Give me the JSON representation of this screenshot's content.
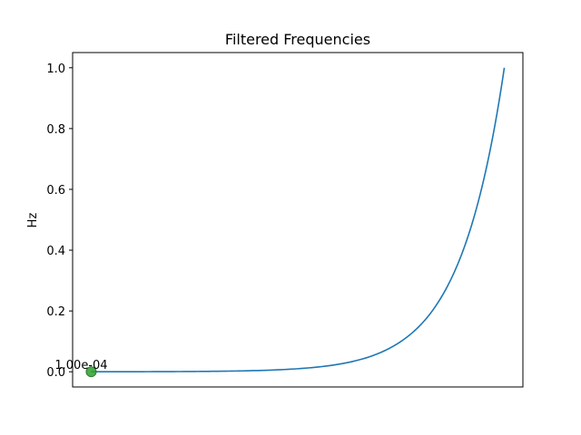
{
  "chart_data": {
    "type": "line",
    "title": "Filtered Frequencies",
    "xlabel": "",
    "ylabel": "Hz",
    "xticks_visible": false,
    "ylim": [
      -0.05,
      1.05
    ],
    "yticks": [
      0.0,
      0.2,
      0.4,
      0.6,
      0.8,
      1.0
    ],
    "ytick_labels": [
      "0.0",
      "0.2",
      "0.4",
      "0.6",
      "0.8",
      "1.0"
    ],
    "grid": false,
    "colors": {
      "line": "#1f77b4",
      "marker": "#2ca02c"
    },
    "series": [
      {
        "points": [
          [
            0.0,
            0.0001
          ],
          [
            0.1,
            0.0002
          ],
          [
            0.2,
            0.0006
          ],
          [
            0.3,
            0.0016
          ],
          [
            0.4,
            0.004
          ],
          [
            0.5,
            0.01
          ],
          [
            0.6,
            0.025
          ],
          [
            0.7,
            0.063
          ],
          [
            0.75,
            0.1
          ],
          [
            0.8,
            0.158
          ],
          [
            0.85,
            0.251
          ],
          [
            0.9,
            0.398
          ],
          [
            0.95,
            0.631
          ],
          [
            1.0,
            1.0
          ]
        ]
      }
    ],
    "annotations": [
      {
        "text": "1.00e-04",
        "x": 0.0,
        "y": 0.0001
      }
    ]
  }
}
